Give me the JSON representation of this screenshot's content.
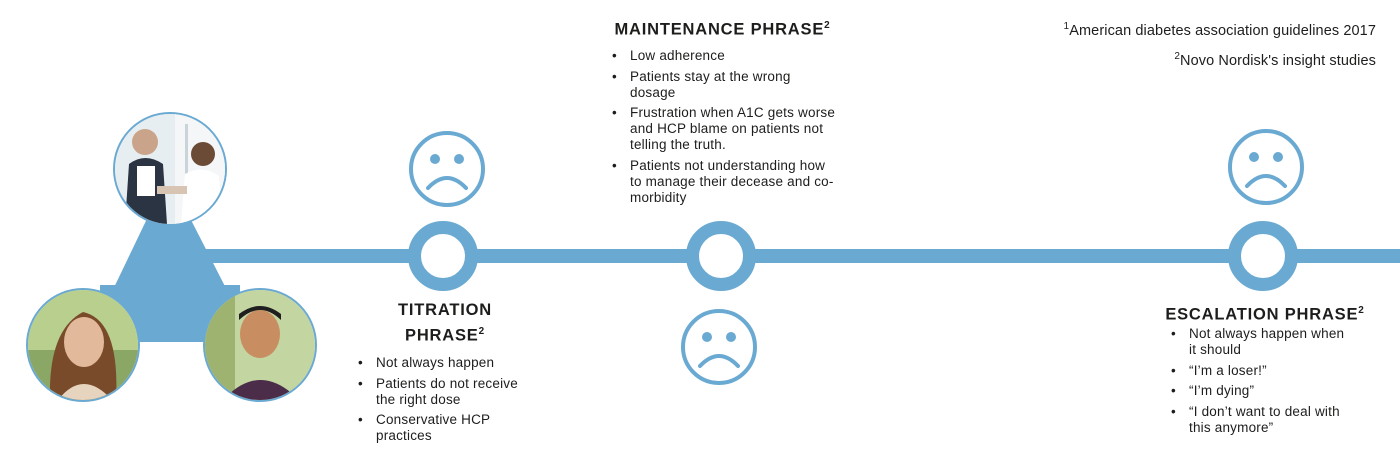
{
  "footnotes": [
    {
      "mark": "1",
      "text": "American diabetes association guidelines 2017"
    },
    {
      "mark": "2",
      "text": "Novo Nordisk's insight studies"
    }
  ],
  "maintenance": {
    "title": "MAINTENANCE PHRASE",
    "mark": "2",
    "points": [
      "Low adherence",
      "Patients stay at the wrong dosage",
      "Frustration when A1C gets worse and HCP blame on patients not telling the truth.",
      "Patients not understanding how to manage their decease and co-morbidity"
    ]
  },
  "titration": {
    "title_line1": "TITRATION",
    "title_line2": "PHRASE",
    "mark": "2",
    "points": [
      "Not always happen",
      "Patients do not receive the right dose",
      "Conservative HCP practices"
    ]
  },
  "escalation": {
    "title": "ESCALATION PHRASE",
    "mark": "2",
    "points": [
      "Not always happen when it should",
      "“I’m a loser!”",
      "“I’m dying”",
      "“I don’t want to deal with this anymore”"
    ]
  },
  "colors": {
    "accent": "#6aa9d2",
    "text": "#1d1d1b",
    "background": "#ffffff"
  },
  "icons": [
    "sad-face-icon",
    "timeline-milestone-icon"
  ],
  "photos": [
    "photo-doctor-and-patient",
    "photo-smiling-woman",
    "photo-smiling-man"
  ]
}
